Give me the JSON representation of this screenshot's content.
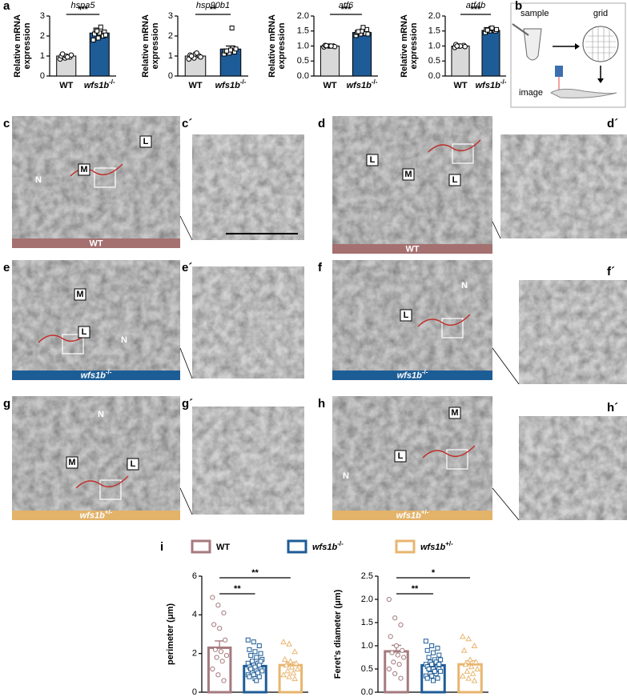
{
  "panel_labels": {
    "a": "a",
    "b": "b",
    "c": "c",
    "c2": "c´",
    "d": "d",
    "d2": "d´",
    "e": "e",
    "e2": "e´",
    "f": "f",
    "f2": "f´",
    "g": "g",
    "g2": "g´",
    "h": "h",
    "h2": "h´",
    "i": "i"
  },
  "schematic": {
    "sample": "sample",
    "grid": "grid",
    "image": "image"
  },
  "micrographs": [
    {
      "group": {
        "label": "WT"
      },
      "color": "#a57070",
      "annotations": [
        "N",
        "M",
        "L"
      ]
    },
    {
      "group": {
        "label": "WT"
      },
      "color": "#a57070",
      "annotations": [
        "L",
        "M",
        "L"
      ]
    },
    {
      "group": {
        "label": "wfs1b",
        "sup": "-/-"
      },
      "color": "#1d5d96",
      "annotations": [
        "M",
        "L",
        "N"
      ]
    },
    {
      "group": {
        "label": "wfs1b",
        "sup": "-/-"
      },
      "color": "#1d5d96",
      "annotations": [
        "N",
        "L"
      ]
    },
    {
      "group": {
        "label": "wfs1b",
        "sup": "+/-"
      },
      "color": "#e3b36a",
      "annotations": [
        "N",
        "M",
        "L"
      ]
    },
    {
      "group": {
        "label": "wfs1b",
        "sup": "+/-"
      },
      "color": "#e3b36a",
      "annotations": [
        "M",
        "L",
        "N"
      ]
    }
  ],
  "legend": [
    {
      "label": "WT",
      "color": "#a57a7e"
    },
    {
      "label": "wfs1b",
      "sup": "-/-",
      "color": "#1e5c97"
    },
    {
      "label": "wfs1b",
      "sup": "+/-",
      "color": "#e8b56e"
    }
  ],
  "chart_data": [
    {
      "type": "bar",
      "title": "hspa5",
      "ylabel": [
        "Relative mRNA",
        "expression"
      ],
      "categories": [
        {
          "label": "WT"
        },
        {
          "label": "wfs1b",
          "sup": "-/-"
        }
      ],
      "values": [
        1.0,
        2.15
      ],
      "errors": [
        0.04,
        0.08
      ],
      "points": [
        [
          0.85,
          0.9,
          0.95,
          1.0,
          1.0,
          1.05,
          1.1,
          0.95
        ],
        [
          1.8,
          1.9,
          2.0,
          2.1,
          2.15,
          2.2,
          2.3,
          2.45,
          2.05,
          2.25
        ]
      ],
      "colors": [
        "#d9d9d9",
        "#1e5c97"
      ],
      "style": "filled",
      "ylim": [
        0,
        3
      ],
      "yticks": [
        0,
        1,
        2,
        3
      ],
      "significance": [
        "***"
      ]
    },
    {
      "type": "bar",
      "title": "hsp90b1",
      "ylabel": [
        "Relative mRNA",
        "expression"
      ],
      "categories": [
        {
          "label": "WT"
        },
        {
          "label": "wfs1b",
          "sup": "-/-"
        }
      ],
      "values": [
        1.0,
        1.35
      ],
      "errors": [
        0.04,
        0.15
      ],
      "points": [
        [
          0.85,
          0.9,
          1.0,
          1.05,
          1.1,
          0.95,
          1.0,
          1.15
        ],
        [
          1.1,
          1.15,
          1.2,
          1.25,
          1.3,
          1.35,
          1.25,
          2.4
        ]
      ],
      "colors": [
        "#d9d9d9",
        "#1e5c97"
      ],
      "style": "filled",
      "ylim": [
        0,
        3
      ],
      "yticks": [
        0,
        1,
        2,
        3
      ],
      "significance": [
        "**"
      ]
    },
    {
      "type": "bar",
      "title": "atf6",
      "ylabel": [
        "Relative mRNA",
        "expression"
      ],
      "categories": [
        {
          "label": "WT"
        },
        {
          "label": "wfs1b",
          "sup": "-/-"
        }
      ],
      "values": [
        1.0,
        1.45
      ],
      "errors": [
        0.01,
        0.03
      ],
      "points": [
        [
          0.97,
          1.0,
          1.0,
          1.02,
          1.0,
          0.98,
          1.01,
          1.0
        ],
        [
          1.35,
          1.4,
          1.42,
          1.45,
          1.5,
          1.55,
          1.48,
          1.62,
          1.4
        ]
      ],
      "colors": [
        "#d9d9d9",
        "#1e5c97"
      ],
      "style": "filled",
      "ylim": [
        0,
        2
      ],
      "yticks": [
        {
          "value": 0,
          "label": "0.0"
        },
        0.5,
        {
          "value": 1,
          "label": "1.0"
        },
        1.5,
        {
          "value": 2,
          "label": "2.0"
        }
      ],
      "significance": [
        "***"
      ]
    },
    {
      "type": "bar",
      "title": "atf4b",
      "ylabel": [
        "Relative mRNA",
        "expression"
      ],
      "categories": [
        {
          "label": "WT"
        },
        {
          "label": "wfs1b",
          "sup": "-/-"
        }
      ],
      "values": [
        1.0,
        1.52
      ],
      "errors": [
        0.01,
        0.02
      ],
      "points": [
        [
          0.95,
          1.0,
          1.02,
          1.05,
          1.0,
          0.98,
          1.0
        ],
        [
          1.45,
          1.5,
          1.52,
          1.55,
          1.58,
          1.5,
          1.53,
          1.6,
          1.55
        ]
      ],
      "colors": [
        "#d9d9d9",
        "#1e5c97"
      ],
      "style": "filled",
      "ylim": [
        0,
        2
      ],
      "yticks": [
        {
          "value": 0,
          "label": "0.0"
        },
        0.5,
        {
          "value": 1,
          "label": "1.0"
        },
        1.5,
        {
          "value": 2,
          "label": "2.0"
        }
      ],
      "significance": [
        "***"
      ]
    },
    {
      "type": "bar",
      "ylabel": "perimeter (μm)",
      "values": [
        2.3,
        1.35,
        1.4
      ],
      "errors": [
        0.35,
        0.1,
        0.15
      ],
      "points": [
        [
          4.9,
          4.5,
          4.1,
          3.5,
          3.3,
          2.7,
          2.2,
          2.1,
          1.9,
          1.8,
          1.6,
          1.2,
          0.9,
          0.6
        ],
        [
          2.7,
          2.6,
          2.4,
          2.2,
          2.1,
          2.0,
          1.9,
          1.8,
          1.7,
          1.6,
          1.5,
          1.5,
          1.4,
          1.4,
          1.3,
          1.3,
          1.2,
          1.2,
          1.1,
          1.1,
          1.0,
          1.0,
          0.9,
          0.9,
          0.8,
          0.8,
          0.7,
          1.6,
          1.2,
          0.6
        ],
        [
          2.6,
          2.5,
          2.1,
          1.7,
          1.6,
          1.5,
          1.4,
          1.3,
          1.2,
          1.1,
          1.0,
          0.9,
          0.8,
          0.7
        ]
      ],
      "colors": [
        "#a57a7e",
        "#1e5c97",
        "#e8b56e"
      ],
      "style": "outline",
      "ylim": [
        0,
        6
      ],
      "yticks": [
        0,
        2,
        4,
        6
      ],
      "significance": [
        "**",
        "**"
      ]
    },
    {
      "type": "bar",
      "ylabel": "Feret’s diameter (μm)",
      "values": [
        0.88,
        0.58,
        0.6
      ],
      "errors": [
        0.13,
        0.05,
        0.08
      ],
      "points": [
        [
          2.0,
          1.6,
          1.45,
          1.2,
          1.0,
          0.9,
          0.85,
          0.8,
          0.75,
          0.65,
          0.6,
          0.5,
          0.4,
          0.3
        ],
        [
          1.1,
          1.0,
          0.95,
          0.9,
          0.85,
          0.8,
          0.75,
          0.7,
          0.7,
          0.65,
          0.65,
          0.6,
          0.6,
          0.55,
          0.55,
          0.5,
          0.5,
          0.5,
          0.45,
          0.45,
          0.4,
          0.4,
          0.35,
          0.35,
          0.3,
          0.3,
          0.25,
          0.6,
          0.5,
          0.45
        ],
        [
          1.2,
          1.15,
          1.0,
          0.9,
          0.7,
          0.65,
          0.6,
          0.55,
          0.5,
          0.45,
          0.4,
          0.35,
          0.3,
          0.25
        ]
      ],
      "colors": [
        "#a57a7e",
        "#1e5c97",
        "#e8b56e"
      ],
      "style": "outline",
      "ylim": [
        0,
        2.5
      ],
      "yticks": [
        {
          "value": 0,
          "label": "0.0"
        },
        0.5,
        {
          "value": 1,
          "label": "1.0"
        },
        1.5,
        {
          "value": 2,
          "label": "2.0"
        },
        2.5
      ],
      "significance": [
        "**",
        "*"
      ]
    }
  ]
}
